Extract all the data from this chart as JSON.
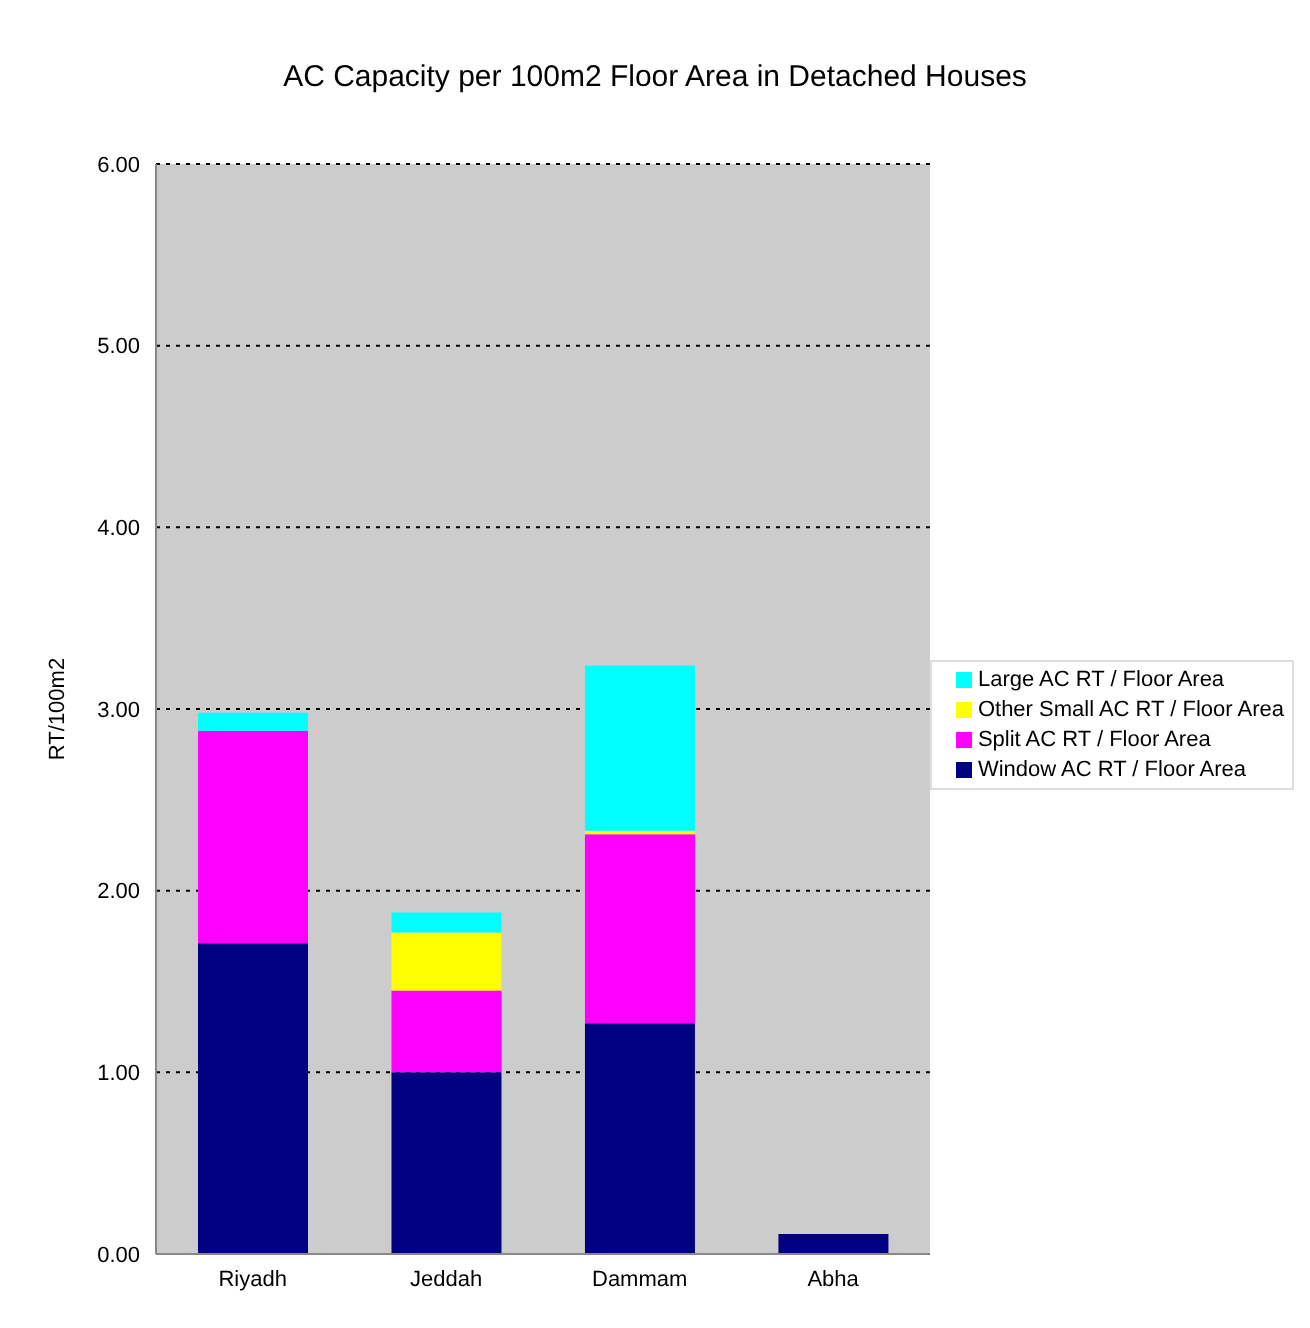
{
  "chart_data": {
    "type": "bar",
    "title": "AC Capacity per 100m2 Floor Area in Detached Houses",
    "ylabel": "RT/100m2",
    "categories": [
      "Riyadh",
      "Jeddah",
      "Dammam",
      "Abha"
    ],
    "stacked": true,
    "series": [
      {
        "name": "Window AC RT / Floor Area",
        "color": "#000080",
        "values": [
          1.71,
          1.0,
          1.27,
          0.11
        ]
      },
      {
        "name": "Split AC RT / Floor Area",
        "color": "#ff00ff",
        "values": [
          1.17,
          0.45,
          1.04,
          0
        ]
      },
      {
        "name": "Other Small AC RT / Floor Area",
        "color": "#ffff00",
        "values": [
          0,
          0.32,
          0.02,
          0
        ]
      },
      {
        "name": "Large AC RT / Floor Area",
        "color": "#00ffff",
        "values": [
          0.1,
          0.11,
          0.91,
          0
        ]
      }
    ],
    "ylim": [
      0,
      6
    ],
    "yticks": [
      {
        "value": 0,
        "label": "0.00"
      },
      {
        "value": 1,
        "label": "1.00"
      },
      {
        "value": 2,
        "label": "2.00"
      },
      {
        "value": 3,
        "label": "3.00"
      },
      {
        "value": 4,
        "label": "4.00"
      },
      {
        "value": 5,
        "label": "5.00"
      },
      {
        "value": 6,
        "label": "6.00"
      }
    ],
    "grid": "y",
    "legend": "right"
  }
}
